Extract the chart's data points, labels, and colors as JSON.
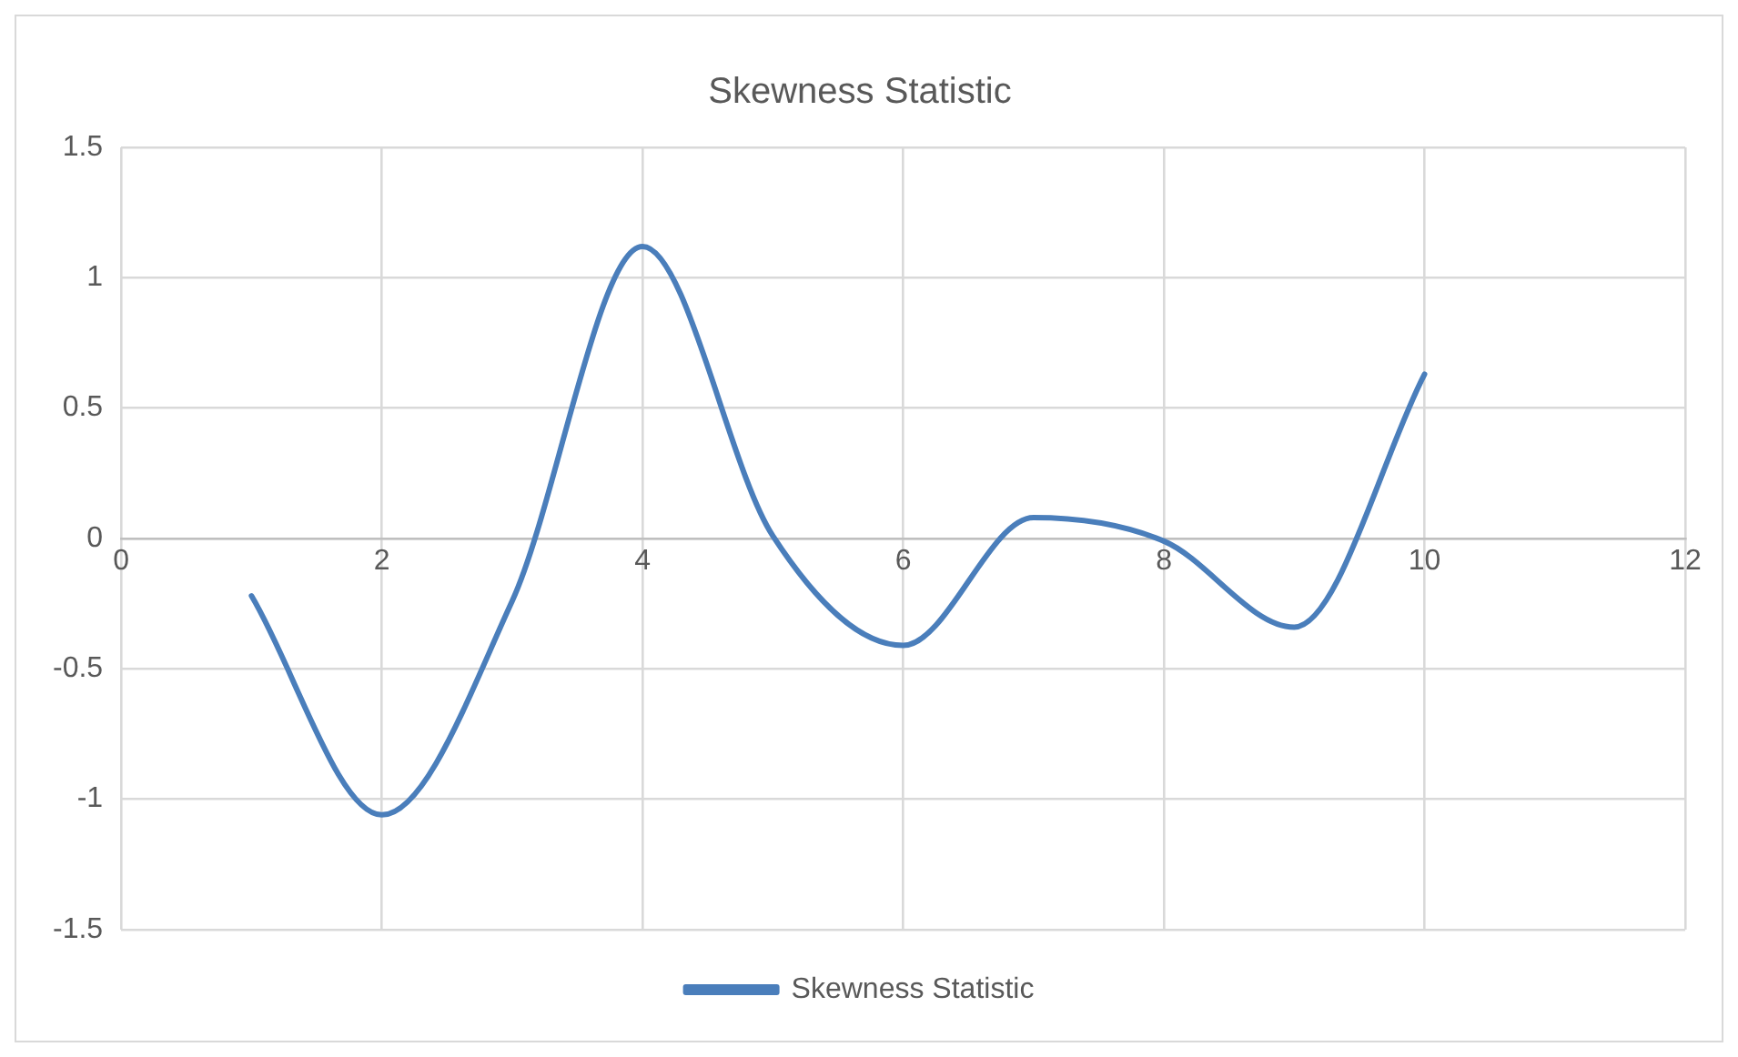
{
  "chart_data": {
    "type": "line",
    "title": "Skewness Statistic",
    "x": [
      1,
      2,
      3,
      4,
      5,
      6,
      7,
      8,
      9,
      10
    ],
    "series": [
      {
        "name": "Skewness Statistic",
        "color": "#4a7ebb",
        "values": [
          -0.22,
          -1.06,
          -0.24,
          1.12,
          0.01,
          -0.41,
          0.08,
          -0.01,
          -0.34,
          0.63
        ]
      }
    ],
    "xlim": [
      0,
      12
    ],
    "xticks": [
      0,
      2,
      4,
      6,
      8,
      10,
      12
    ],
    "ylim": [
      -1.5,
      1.5
    ],
    "yticks": [
      -1.5,
      -1,
      -0.5,
      0,
      0.5,
      1,
      1.5
    ],
    "grid": true,
    "legend": "bottom",
    "marker": "none",
    "line_style": "solid"
  }
}
